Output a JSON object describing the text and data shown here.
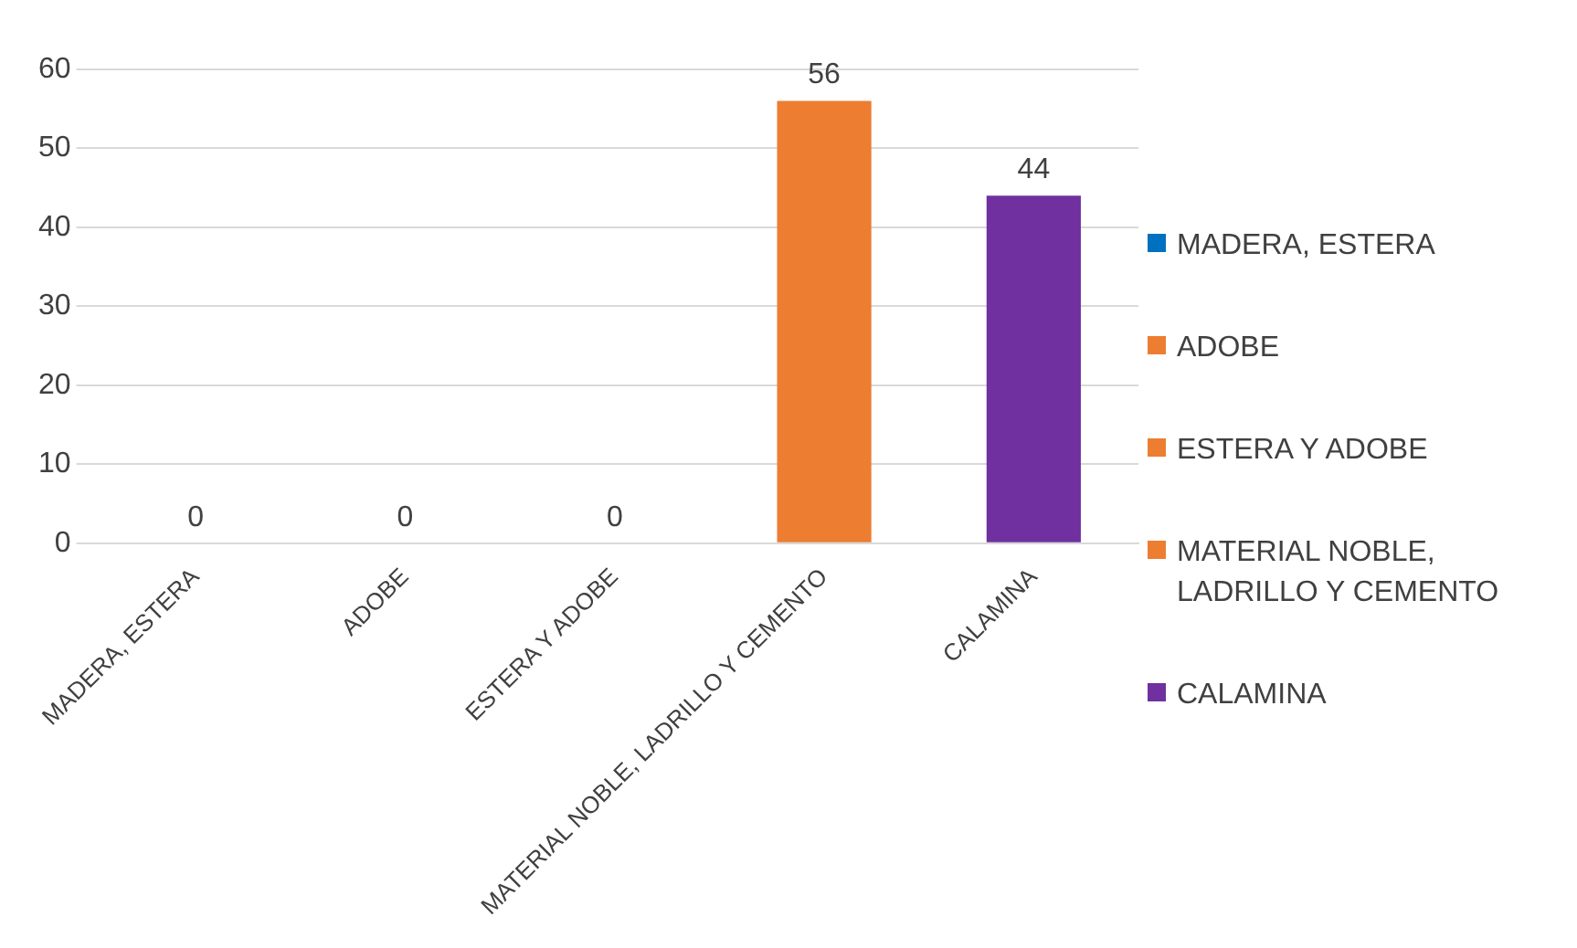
{
  "chart_data": {
    "type": "bar",
    "categories": [
      "MADERA, ESTERA",
      "ADOBE",
      "ESTERA Y ADOBE",
      "MATERIAL NOBLE, LADRILLO Y CEMENTO",
      "CALAMINA"
    ],
    "series": [
      {
        "name": "MADERA, ESTERA",
        "color": "#0070c0",
        "values": [
          0,
          null,
          null,
          null,
          null
        ]
      },
      {
        "name": "ADOBE",
        "color": "#ed7d31",
        "values": [
          null,
          0,
          null,
          null,
          null
        ]
      },
      {
        "name": "ESTERA Y ADOBE",
        "color": "#ed7d31",
        "values": [
          null,
          null,
          0,
          null,
          null
        ]
      },
      {
        "name": "MATERIAL NOBLE, LADRILLO Y CEMENTO",
        "color": "#ed7d31",
        "values": [
          null,
          null,
          null,
          56,
          null
        ]
      },
      {
        "name": "CALAMINA",
        "color": "#7030a0",
        "values": [
          null,
          null,
          null,
          null,
          44
        ]
      }
    ],
    "ylim": [
      0,
      60
    ],
    "yticks": [
      0,
      10,
      20,
      30,
      40,
      50,
      60
    ],
    "grid": "y",
    "legend": "right",
    "data_labels": true
  }
}
